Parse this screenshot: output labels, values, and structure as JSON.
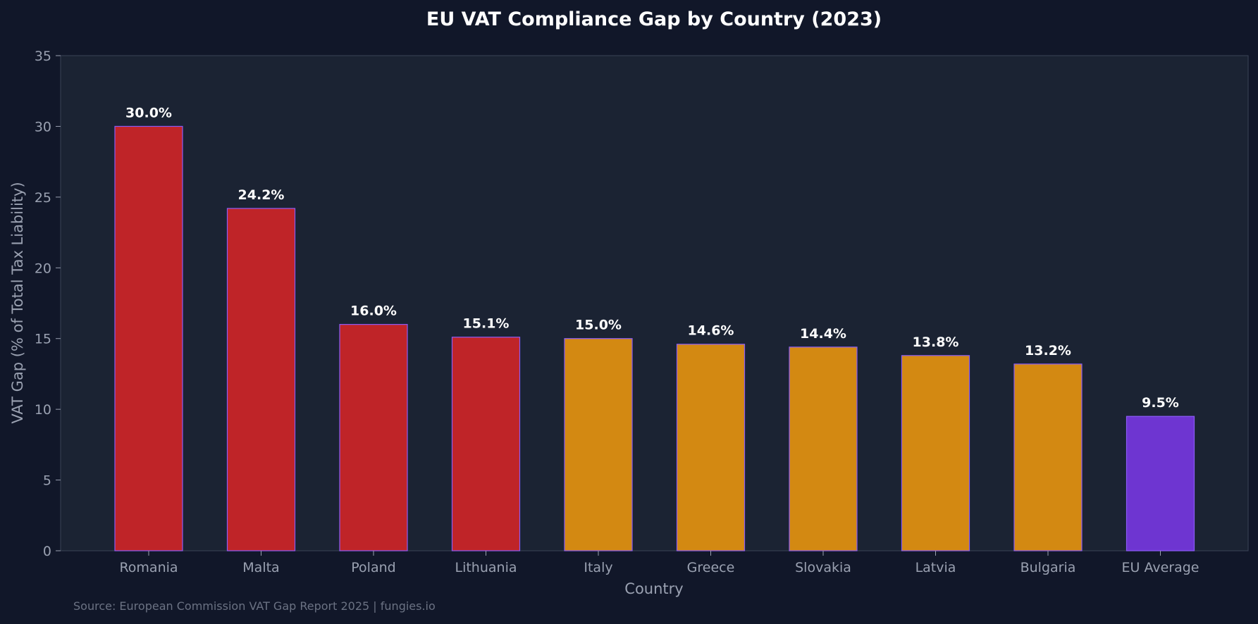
{
  "colors": {
    "page_background": "#111729",
    "plot_background": "#1b2333",
    "red": "#bf2428",
    "orange": "#d38912",
    "purple": "#6e35d1",
    "bar_edge": "#8b5cf6",
    "text_light": "#9aa1b1",
    "title": "#ffffff",
    "source": "#6b7283"
  },
  "chart_data": {
    "type": "bar",
    "title": "EU VAT Compliance Gap by Country (2023)",
    "xlabel": "Country",
    "ylabel": "VAT Gap (% of Total Tax Liability)",
    "ylim": [
      0,
      35
    ],
    "yticks": [
      0,
      5,
      10,
      15,
      20,
      25,
      30,
      35
    ],
    "grid": false,
    "categories": [
      "Romania",
      "Malta",
      "Poland",
      "Lithuania",
      "Italy",
      "Greece",
      "Slovakia",
      "Latvia",
      "Bulgaria",
      "EU Average"
    ],
    "values": [
      30.0,
      24.2,
      16.0,
      15.1,
      15.0,
      14.6,
      14.4,
      13.8,
      13.2,
      9.5
    ],
    "value_labels": [
      "30.0%",
      "24.2%",
      "16.0%",
      "15.1%",
      "15.0%",
      "14.6%",
      "14.4%",
      "13.8%",
      "13.2%",
      "9.5%"
    ],
    "bar_colors": [
      "#bf2428",
      "#bf2428",
      "#bf2428",
      "#bf2428",
      "#d38912",
      "#d38912",
      "#d38912",
      "#d38912",
      "#d38912",
      "#6e35d1"
    ],
    "source": "Source: European Commission VAT Gap Report 2025 | fungies.io"
  }
}
